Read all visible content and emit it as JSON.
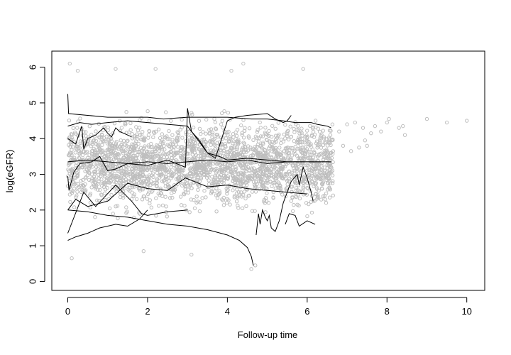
{
  "chart_data": {
    "type": "line",
    "title": "",
    "xlabel": "Follow-up time",
    "ylabel": "log(eGFR)",
    "xlim": [
      -0.4,
      10.45
    ],
    "ylim": [
      -0.25,
      6.45
    ],
    "xticks": [
      0,
      2,
      4,
      6,
      8,
      10
    ],
    "yticks": [
      0,
      1,
      2,
      3,
      4,
      5,
      6
    ],
    "grid": false,
    "legend": "none",
    "point_color": "#bebebe",
    "line_color": "#000000",
    "scatter": {
      "description_note": "",
      "band_x_range": [
        0,
        6.65
      ],
      "band_y_range": [
        0.9,
        5.7
      ],
      "outlier_points": [
        {
          "x": 0.05,
          "y": 6.1
        },
        {
          "x": 0.1,
          "y": 0.65
        },
        {
          "x": 0.25,
          "y": 5.9
        },
        {
          "x": 1.2,
          "y": 5.95
        },
        {
          "x": 2.2,
          "y": 5.95
        },
        {
          "x": 4.4,
          "y": 6.1
        },
        {
          "x": 4.1,
          "y": 5.9
        },
        {
          "x": 5.9,
          "y": 5.95
        },
        {
          "x": 4.6,
          "y": 0.35
        },
        {
          "x": 4.7,
          "y": 0.45
        },
        {
          "x": 1.9,
          "y": 0.85
        },
        {
          "x": 3.1,
          "y": 0.75
        },
        {
          "x": 6.8,
          "y": 4.2
        },
        {
          "x": 6.9,
          "y": 3.8
        },
        {
          "x": 7.0,
          "y": 4.4
        },
        {
          "x": 7.1,
          "y": 3.65
        },
        {
          "x": 7.2,
          "y": 4.45
        },
        {
          "x": 7.3,
          "y": 3.75
        },
        {
          "x": 7.4,
          "y": 4.3
        },
        {
          "x": 7.45,
          "y": 3.95
        },
        {
          "x": 7.5,
          "y": 3.8
        },
        {
          "x": 7.6,
          "y": 4.15
        },
        {
          "x": 7.7,
          "y": 4.35
        },
        {
          "x": 7.85,
          "y": 4.2
        },
        {
          "x": 8.0,
          "y": 4.45
        },
        {
          "x": 8.05,
          "y": 4.55
        },
        {
          "x": 8.3,
          "y": 4.3
        },
        {
          "x": 8.4,
          "y": 4.35
        },
        {
          "x": 8.45,
          "y": 4.1
        },
        {
          "x": 9.0,
          "y": 4.55
        },
        {
          "x": 9.5,
          "y": 4.45
        },
        {
          "x": 10.0,
          "y": 4.5
        }
      ]
    },
    "series": [
      {
        "x": [
          0,
          0.02,
          0.5,
          1.0,
          2.0,
          2.4,
          3.0,
          3.5,
          4.0,
          4.6,
          5.0,
          5.4,
          5.7,
          6.1,
          6.25,
          6.5,
          6.6
        ],
        "y": [
          5.25,
          4.7,
          4.65,
          4.6,
          4.6,
          4.55,
          4.6,
          4.6,
          4.6,
          4.55,
          4.55,
          4.5,
          4.45,
          4.45,
          4.4,
          4.35,
          4.3
        ]
      },
      {
        "x": [
          0,
          0.3,
          0.6,
          1.0,
          1.5,
          2.0,
          2.5,
          3.0,
          3.5,
          3.7,
          4.0,
          4.2,
          4.5,
          5.0,
          5.2,
          5.4,
          5.5,
          5.6
        ],
        "y": [
          4.35,
          4.45,
          4.4,
          4.45,
          4.5,
          4.45,
          4.4,
          4.35,
          3.6,
          3.45,
          4.5,
          4.6,
          4.65,
          4.7,
          4.55,
          4.45,
          4.5,
          4.65
        ]
      },
      {
        "x": [
          0,
          0.2,
          0.35,
          0.4,
          0.5,
          0.7,
          0.9,
          1.0,
          1.1,
          1.2,
          1.3,
          1.5,
          1.6
        ],
        "y": [
          4.0,
          3.85,
          4.35,
          3.7,
          4.0,
          4.1,
          4.3,
          4.15,
          4.05,
          4.3,
          4.2,
          4.1,
          4.05
        ]
      },
      {
        "x": [
          0,
          0.03,
          0.15,
          0.3,
          0.6,
          0.8,
          1.0,
          1.2,
          1.5,
          2.0,
          2.5,
          2.95,
          3.0,
          3.1,
          3.3,
          3.5,
          3.8,
          4.0,
          4.5,
          5.0,
          5.5,
          6.0,
          6.5,
          6.6
        ],
        "y": [
          2.95,
          2.55,
          3.05,
          3.3,
          3.35,
          3.5,
          3.1,
          3.15,
          3.3,
          3.25,
          3.4,
          3.2,
          4.85,
          4.2,
          3.95,
          3.6,
          3.5,
          3.4,
          3.45,
          3.4,
          3.35,
          3.35,
          3.35,
          3.35
        ]
      },
      {
        "x": [
          0,
          0.5,
          1.0,
          1.5,
          2.0,
          2.5,
          3.0,
          3.5,
          4.0,
          4.5,
          5.0,
          5.5,
          6.0,
          6.6
        ],
        "y": [
          3.35,
          3.4,
          3.35,
          3.3,
          3.35,
          3.3,
          3.35,
          3.4,
          3.35,
          3.4,
          3.3,
          3.35,
          3.35,
          3.35
        ]
      },
      {
        "x": [
          0,
          0.2,
          0.5,
          1.0,
          1.5,
          2.0,
          2.5,
          2.95,
          3.5,
          4.0,
          4.5,
          5.0,
          5.5,
          6.0
        ],
        "y": [
          2.0,
          2.3,
          2.1,
          2.25,
          2.75,
          2.6,
          2.55,
          2.9,
          2.65,
          2.7,
          2.6,
          2.55,
          2.5,
          2.45
        ]
      },
      {
        "x": [
          0,
          0.4,
          0.7,
          1.2,
          1.6,
          1.85,
          2.0,
          2.5,
          3.0
        ],
        "y": [
          1.35,
          2.5,
          2.1,
          2.7,
          2.25,
          1.9,
          1.85,
          1.95,
          2.0
        ]
      },
      {
        "x": [
          0,
          0.5,
          1.0,
          1.5,
          2.0,
          2.5,
          3.0,
          3.5,
          4.0,
          4.3,
          4.5,
          4.6,
          4.65
        ],
        "y": [
          2.0,
          1.95,
          1.85,
          1.8,
          1.7,
          1.6,
          1.55,
          1.45,
          1.3,
          1.15,
          0.95,
          0.7,
          0.45
        ]
      },
      {
        "x": [
          0,
          0.2,
          0.5,
          0.8,
          1.0,
          1.2,
          1.5,
          1.8,
          2.0
        ],
        "y": [
          1.15,
          1.25,
          1.35,
          1.5,
          1.55,
          1.6,
          1.55,
          1.75,
          2.0
        ]
      },
      {
        "x": [
          4.72,
          4.78,
          4.82,
          4.88,
          4.95,
          5.0,
          5.05,
          5.1,
          5.2,
          5.3,
          5.4,
          5.5,
          5.6,
          5.75,
          5.8,
          5.9,
          6.0,
          6.1,
          6.15
        ],
        "y": [
          1.3,
          1.9,
          1.6,
          2.0,
          1.8,
          1.7,
          1.85,
          1.5,
          1.4,
          1.7,
          2.2,
          2.5,
          2.8,
          3.0,
          2.7,
          3.2,
          2.9,
          2.5,
          2.25
        ]
      },
      {
        "x": [
          5.45,
          5.55,
          5.7,
          5.8,
          6.0,
          6.2
        ],
        "y": [
          1.6,
          1.9,
          1.85,
          1.55,
          1.7,
          1.6
        ]
      }
    ]
  }
}
